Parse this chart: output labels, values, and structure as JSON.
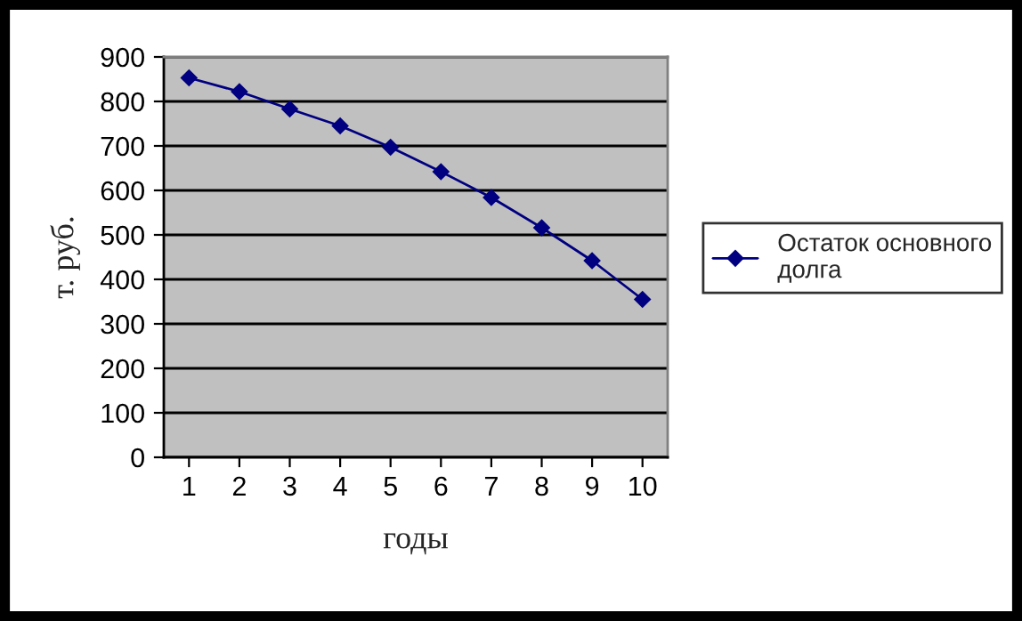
{
  "chart_data": {
    "type": "line",
    "xlabel": "годы",
    "ylabel": "т. руб.",
    "categories": [
      "1",
      "2",
      "3",
      "4",
      "5",
      "6",
      "7",
      "8",
      "9",
      "10"
    ],
    "series": [
      {
        "name": "Остаток основного долга",
        "color": "#000080",
        "values": [
          853,
          822,
          783,
          745,
          697,
          642,
          584,
          516,
          442,
          355
        ]
      }
    ],
    "ylim": [
      0,
      900
    ],
    "yticks": [
      0,
      100,
      200,
      300,
      400,
      500,
      600,
      700,
      800,
      900
    ],
    "grid": "y",
    "legend": "right",
    "marker": "diamond",
    "line_style": "solid"
  }
}
